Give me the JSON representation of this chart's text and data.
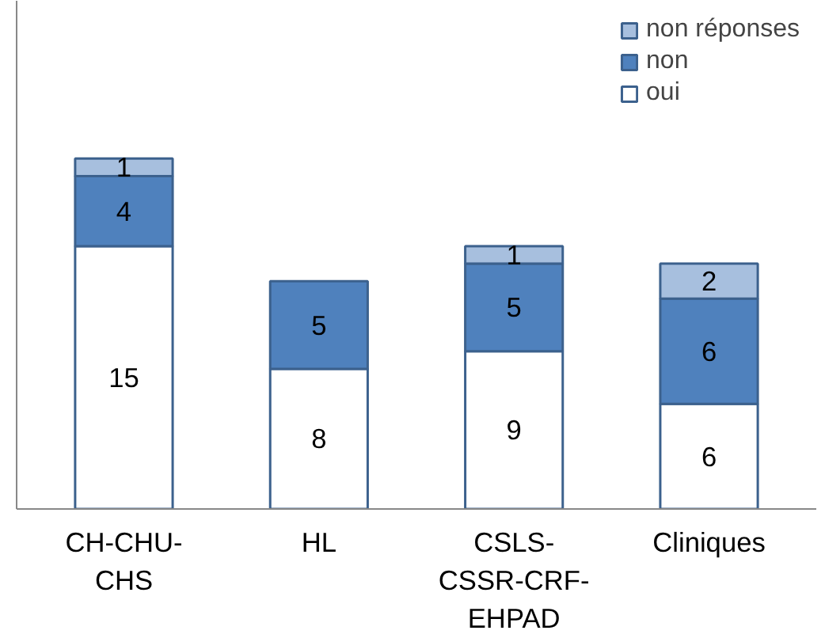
{
  "chart_data": {
    "type": "bar",
    "stacked": true,
    "categories": [
      "CH-CHU-\nCHS",
      "HL",
      "CSLS-\nCSSR-CRF-\nEHPAD",
      "Cliniques"
    ],
    "series": [
      {
        "name": "oui",
        "color": "#ffffff",
        "values": [
          15,
          8,
          9,
          6
        ]
      },
      {
        "name": "non",
        "color": "#4f81bd",
        "values": [
          4,
          5,
          5,
          6
        ]
      },
      {
        "name": "non réponses",
        "color": "#a7bfde",
        "values": [
          1,
          null,
          1,
          2
        ]
      }
    ],
    "ylim": [
      0,
      29
    ],
    "data_labels": true,
    "legend": "top right"
  }
}
